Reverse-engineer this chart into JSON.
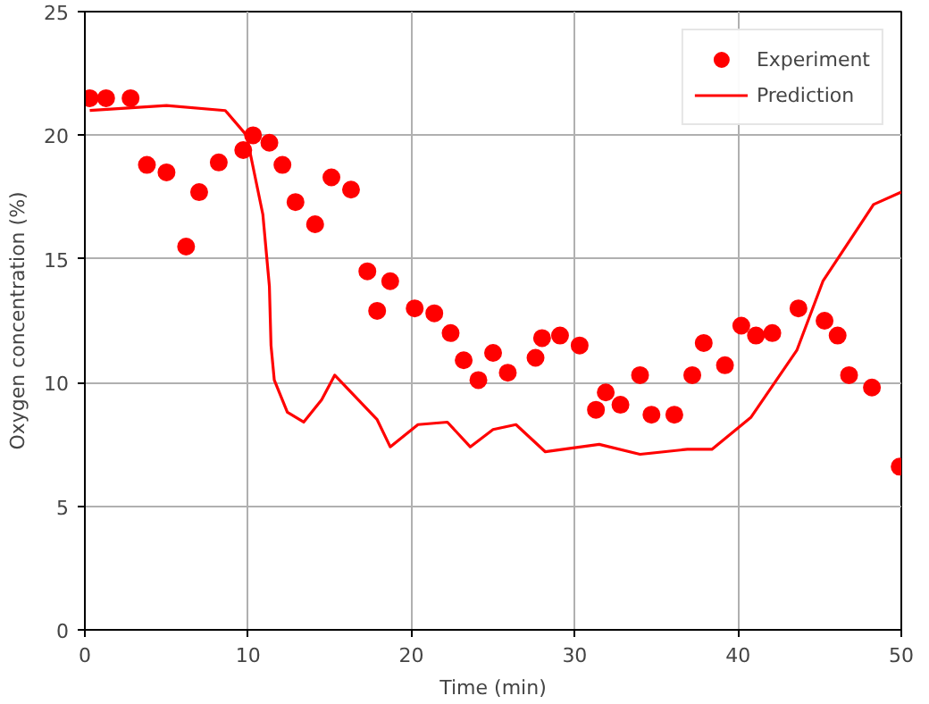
{
  "chart_data": {
    "type": "scatter",
    "xlabel": "Time (min)",
    "ylabel": "Oxygen concentration (%)",
    "xlim": [
      0,
      50
    ],
    "ylim": [
      0,
      25
    ],
    "xticks": [
      0,
      10,
      20,
      30,
      40,
      50
    ],
    "yticks": [
      0,
      5,
      10,
      15,
      20,
      25
    ],
    "grid": true,
    "legend": "top right",
    "series": [
      {
        "name": "Experiment",
        "marker": "circle",
        "color": "#ff0000",
        "x": [
          0.3,
          1.3,
          2.8,
          3.8,
          5.0,
          6.2,
          7.0,
          8.2,
          9.7,
          10.3,
          11.3,
          12.1,
          12.9,
          14.1,
          15.1,
          16.3,
          17.3,
          17.9,
          18.7,
          20.2,
          21.4,
          22.4,
          23.2,
          24.1,
          25.0,
          25.9,
          27.6,
          28.0,
          29.1,
          30.3,
          31.3,
          31.9,
          32.8,
          34.0,
          34.7,
          36.1,
          37.2,
          37.9,
          39.2,
          40.2,
          41.1,
          42.1,
          43.7,
          45.3,
          46.1,
          46.8,
          48.2,
          49.9
        ],
        "values": [
          21.5,
          21.5,
          21.5,
          18.8,
          18.5,
          15.5,
          17.7,
          18.9,
          19.4,
          20.0,
          19.7,
          18.8,
          17.3,
          16.4,
          18.3,
          17.8,
          14.5,
          12.9,
          14.1,
          13.0,
          12.8,
          12.0,
          10.9,
          10.1,
          11.2,
          10.4,
          11.0,
          11.8,
          11.9,
          11.5,
          8.9,
          9.6,
          9.1,
          10.3,
          8.7,
          8.7,
          10.3,
          11.6,
          10.7,
          12.3,
          11.9,
          12.0,
          13.0,
          12.5,
          11.9,
          10.3,
          9.8,
          6.6
        ]
      },
      {
        "name": "Prediction",
        "type": "line",
        "line_style": "solid",
        "color": "#ff0000",
        "x": [
          0.3,
          5.0,
          8.6,
          9.9,
          10.9,
          11.3,
          11.4,
          11.6,
          12.4,
          13.4,
          14.5,
          15.3,
          17.9,
          18.7,
          20.4,
          22.2,
          23.6,
          25.0,
          26.4,
          28.2,
          31.5,
          34.0,
          36.9,
          38.4,
          40.8,
          43.6,
          45.2,
          48.3,
          50
        ],
        "values": [
          21.0,
          21.2,
          21.0,
          20.0,
          16.8,
          13.9,
          11.5,
          10.1,
          8.8,
          8.4,
          9.3,
          10.3,
          8.5,
          7.4,
          8.3,
          8.4,
          7.4,
          8.1,
          8.3,
          7.2,
          7.5,
          7.1,
          7.3,
          7.3,
          8.6,
          11.3,
          14.1,
          17.2,
          17.7
        ]
      }
    ]
  }
}
